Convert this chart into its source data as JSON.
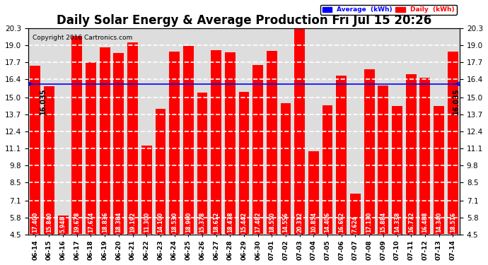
{
  "title": "Daily Solar Energy & Average Production Fri Jul 15 20:26",
  "copyright": "Copyright 2016 Cartronics.com",
  "categories": [
    "06-14",
    "06-15",
    "06-16",
    "06-17",
    "06-18",
    "06-19",
    "06-20",
    "06-21",
    "06-22",
    "06-23",
    "06-24",
    "06-25",
    "06-26",
    "06-27",
    "06-28",
    "06-29",
    "06-30",
    "07-01",
    "07-02",
    "07-03",
    "07-04",
    "07-05",
    "07-06",
    "07-07",
    "07-08",
    "07-09",
    "07-10",
    "07-11",
    "07-12",
    "07-13",
    "07-14"
  ],
  "values": [
    17.4,
    15.84,
    5.948,
    19.678,
    17.674,
    18.836,
    18.384,
    19.192,
    11.3,
    14.1,
    18.53,
    18.96,
    15.378,
    18.612,
    18.478,
    15.442,
    17.482,
    18.55,
    14.556,
    20.312,
    10.854,
    14.406,
    16.692,
    7.624,
    17.13,
    15.884,
    14.338,
    16.772,
    16.488,
    14.34,
    18.516
  ],
  "average": 16.035,
  "bar_color": "#ff0000",
  "avg_line_color": "#0000ff",
  "bar_label_color": "#ffffff",
  "background_color": "#ffffff",
  "plot_bg_color": "#dddddd",
  "ylim": [
    4.5,
    20.3
  ],
  "yticks": [
    4.5,
    5.8,
    7.1,
    8.5,
    9.8,
    11.1,
    12.4,
    13.7,
    15.0,
    16.4,
    17.7,
    19.0,
    20.3
  ],
  "avg_text": "16.035",
  "legend_avg_label": "Average  (kWh)",
  "legend_daily_label": "Daily  (kWh)",
  "legend_avg_bg": "#0000ff",
  "legend_daily_bg": "#ff0000",
  "title_fontsize": 12,
  "bar_label_fontsize": 5.5,
  "xlabel_fontsize": 6.5,
  "ytick_fontsize": 7.5,
  "grid_color": "#ffffff",
  "grid_linestyle": "--"
}
